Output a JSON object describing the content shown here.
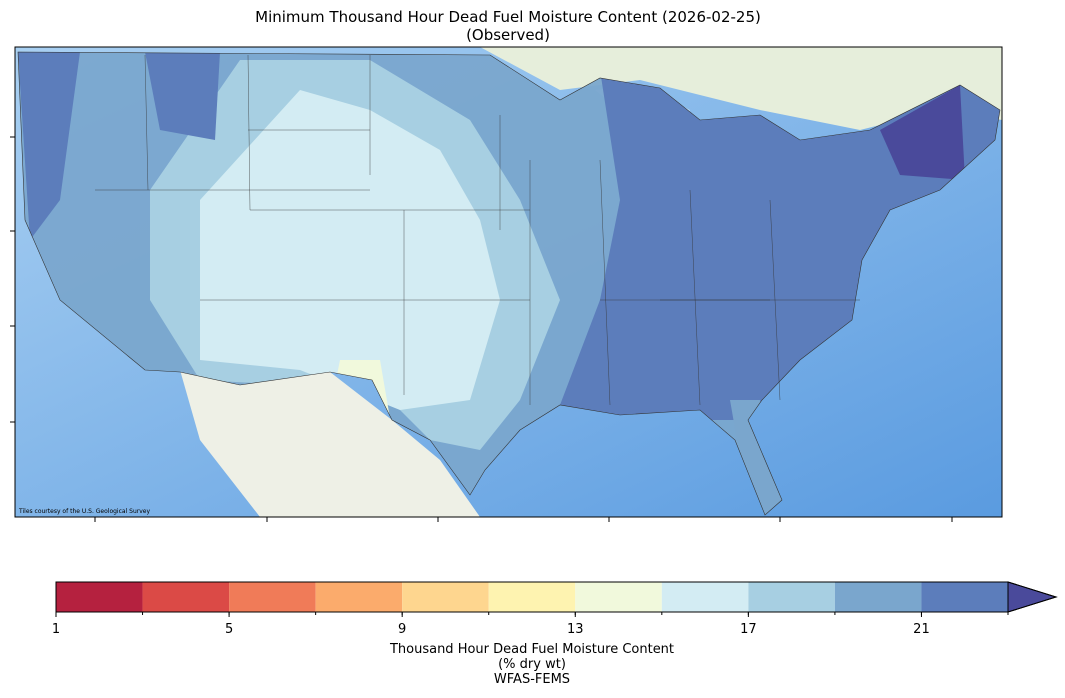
{
  "title": "Minimum Thousand Hour Dead Fuel Moisture Content (2026-02-25)",
  "subtitle": "(Observed)",
  "map": {
    "attribution": "Tiles courtesy of the U.S. Geological Survey"
  },
  "colorbar": {
    "bounds": [
      1,
      3,
      5,
      7,
      9,
      11,
      13,
      15,
      17,
      19,
      21,
      23
    ],
    "ticks": [
      1,
      5,
      9,
      13,
      17,
      21
    ],
    "colors": [
      "#b5213f",
      "#db4a46",
      "#f07b58",
      "#fbab6c",
      "#fed68f",
      "#fef3b0",
      "#f1f9dc",
      "#d3ecf3",
      "#a7cfe2",
      "#7aa6cd",
      "#5c7dbb"
    ],
    "extend": "max",
    "extend_color": "#4a4a9b",
    "label": [
      "Thousand Hour Dead Fuel Moisture Content",
      "(% dry wt)",
      "WFAS-FEMS"
    ]
  }
}
